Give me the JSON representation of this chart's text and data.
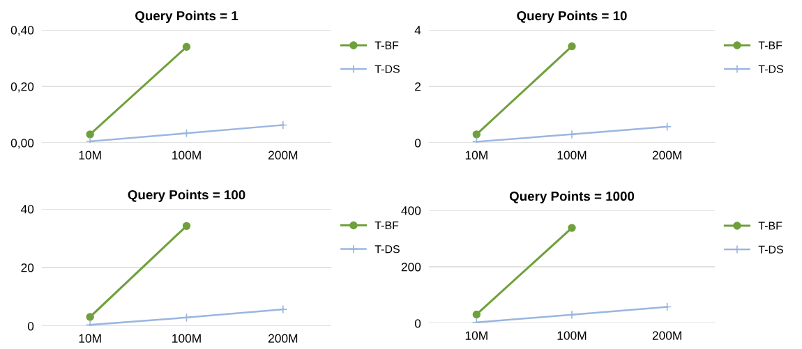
{
  "chart_data": [
    {
      "type": "line",
      "title": "Query Points = 1",
      "categories": [
        "10M",
        "100M",
        "200M"
      ],
      "series": [
        {
          "name": "T-BF",
          "color": "#70a03c",
          "marker": "circle",
          "values": [
            0.03,
            0.34,
            null
          ]
        },
        {
          "name": "T-DS",
          "color": "#9ab6e0",
          "marker": "cross",
          "values": [
            0.005,
            0.034,
            0.063
          ]
        }
      ],
      "ylim": [
        0,
        0.4
      ],
      "yticks": [
        {
          "value": 0,
          "label": "0,00"
        },
        {
          "value": 0.2,
          "label": "0,20"
        },
        {
          "value": 0.4,
          "label": "0,40"
        }
      ],
      "grid": "y",
      "legend": "right"
    },
    {
      "type": "line",
      "title": "Query Points = 10",
      "categories": [
        "10M",
        "100M",
        "200M"
      ],
      "series": [
        {
          "name": "T-BF",
          "color": "#70a03c",
          "marker": "circle",
          "values": [
            0.3,
            3.42,
            null
          ]
        },
        {
          "name": "T-DS",
          "color": "#9ab6e0",
          "marker": "cross",
          "values": [
            0.04,
            0.3,
            0.57
          ]
        }
      ],
      "ylim": [
        0,
        4
      ],
      "yticks": [
        0,
        2,
        4
      ],
      "grid": "y",
      "legend": "right"
    },
    {
      "type": "line",
      "title": "Query Points = 100",
      "categories": [
        "10M",
        "100M",
        "200M"
      ],
      "series": [
        {
          "name": "T-BF",
          "color": "#70a03c",
          "marker": "circle",
          "values": [
            3.1,
            34.2,
            null
          ]
        },
        {
          "name": "T-DS",
          "color": "#9ab6e0",
          "marker": "cross",
          "values": [
            0.4,
            2.9,
            5.7
          ]
        }
      ],
      "ylim": [
        0,
        40
      ],
      "yticks": [
        0,
        20,
        40
      ],
      "grid": "y",
      "legend": "right"
    },
    {
      "type": "line",
      "title": "Query Points = 1000",
      "categories": [
        "10M",
        "100M",
        "200M"
      ],
      "series": [
        {
          "name": "T-BF",
          "color": "#70a03c",
          "marker": "circle",
          "values": [
            31,
            338,
            null
          ]
        },
        {
          "name": "T-DS",
          "color": "#9ab6e0",
          "marker": "cross",
          "values": [
            3,
            30,
            58
          ]
        }
      ],
      "ylim": [
        0,
        400
      ],
      "yticks": [
        0,
        200,
        400
      ],
      "grid": "y",
      "legend": "right"
    }
  ]
}
